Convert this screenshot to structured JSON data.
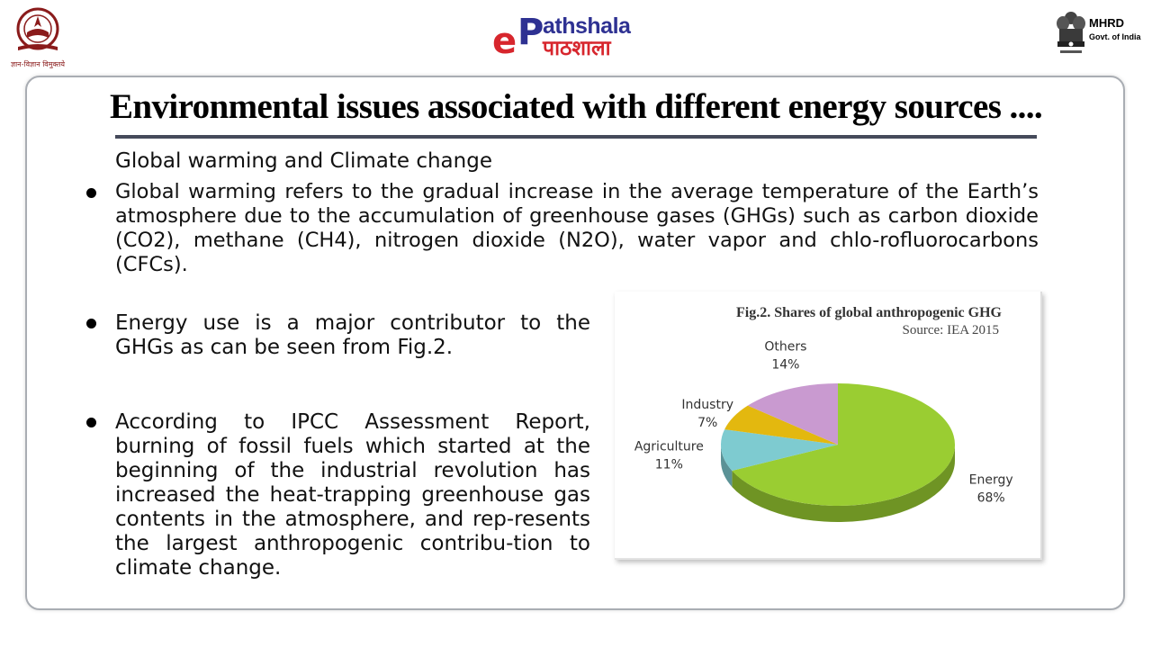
{
  "header": {
    "left_logo": {
      "caption": "ज्ञान-विज्ञान विमुक्तये"
    },
    "center_logo": {
      "line1": "athshala",
      "line2": "पाठशाला",
      "e_letter": "e",
      "p_letter": "P"
    },
    "right_logo": {
      "title": "MHRD",
      "subtitle": "Govt. of India"
    }
  },
  "slide": {
    "title": "Environmental issues associated with different energy sources ....",
    "subheading": "Global warming and Climate change",
    "bullets": [
      "Global warming refers to the gradual increase in the average temperature of the Earth’s atmosphere due to the accumulation of greenhouse gases (GHGs) such as carbon dioxide (CO2), methane (CH4), nitrogen dioxide (N2O), water vapor and chlo-rofluorocarbons (CFCs).",
      "Energy use is a major contributor to the GHGs as can be seen from Fig.2.",
      "According to IPCC Assessment Report, burning of fossil fuels which started at the beginning of the industrial revolution has increased the heat-trapping greenhouse gas contents in the atmosphere, and rep-resents the largest anthropogenic contribu-tion to climate change."
    ]
  },
  "chart_data": {
    "type": "pie",
    "title": "Fig.2. Shares of global anthropogenic GHG",
    "subtitle": "Source: IEA 2015",
    "slices": [
      {
        "name": "Energy",
        "label": "Energy",
        "pct_label": "68%",
        "value": 68,
        "color": "#9acd32"
      },
      {
        "name": "Agriculture",
        "label": "Agriculture",
        "pct_label": "11%",
        "value": 11,
        "color": "#7ecbd0"
      },
      {
        "name": "Industry",
        "label": "Industry",
        "pct_label": "7%",
        "value": 7,
        "color": "#e3b80f"
      },
      {
        "name": "Others",
        "label": "Others",
        "pct_label": "14%",
        "value": 14,
        "color": "#c99ad0"
      }
    ]
  }
}
